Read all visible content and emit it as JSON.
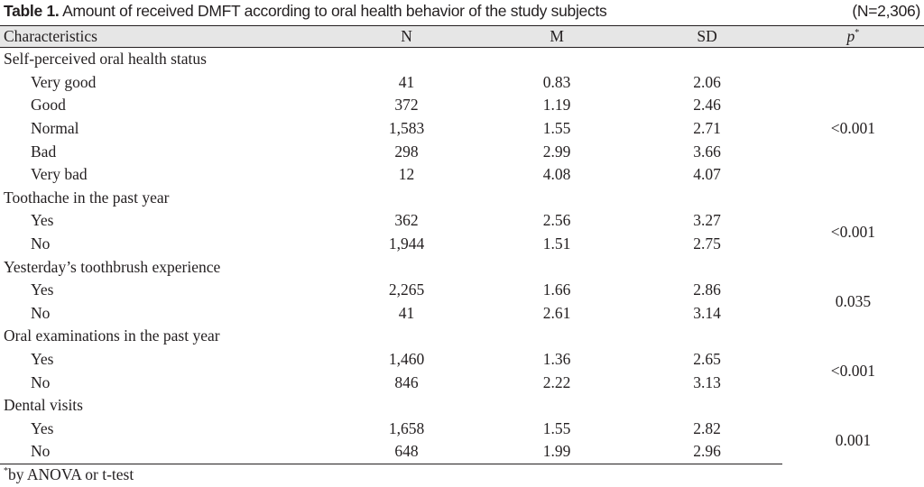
{
  "caption": {
    "label": "Table 1.",
    "text": " Amount of received DMFT according to oral health behavior of the study subjects",
    "n": "(N=2,306)"
  },
  "headers": {
    "characteristics": "Characteristics",
    "n": "N",
    "m": "M",
    "sd": "SD",
    "p": "p",
    "p_mark": "*"
  },
  "groups": [
    {
      "title": "Self-perceived oral health status",
      "p": "<0.001",
      "rows": [
        {
          "label": "Very good",
          "n": "41",
          "m": "0.83",
          "sd": "2.06"
        },
        {
          "label": "Good",
          "n": "372",
          "m": "1.19",
          "sd": "2.46"
        },
        {
          "label": "Normal",
          "n": "1,583",
          "m": "1.55",
          "sd": "2.71"
        },
        {
          "label": "Bad",
          "n": "298",
          "m": "2.99",
          "sd": "3.66"
        },
        {
          "label": "Very bad",
          "n": "12",
          "m": "4.08",
          "sd": "4.07"
        }
      ]
    },
    {
      "title": "Toothache in the past year",
      "p": "<0.001",
      "rows": [
        {
          "label": "Yes",
          "n": "362",
          "m": "2.56",
          "sd": "3.27"
        },
        {
          "label": "No",
          "n": "1,944",
          "m": "1.51",
          "sd": "2.75"
        }
      ]
    },
    {
      "title": "Yesterday’s toothbrush experience",
      "p": "0.035",
      "rows": [
        {
          "label": "Yes",
          "n": "2,265",
          "m": "1.66",
          "sd": "2.86"
        },
        {
          "label": "No",
          "n": "41",
          "m": "2.61",
          "sd": "3.14"
        }
      ]
    },
    {
      "title": "Oral examinations in the past year",
      "p": "<0.001",
      "rows": [
        {
          "label": "Yes",
          "n": "1,460",
          "m": "1.36",
          "sd": "2.65"
        },
        {
          "label": "No",
          "n": "846",
          "m": "2.22",
          "sd": "3.13"
        }
      ]
    },
    {
      "title": "Dental visits",
      "p": "0.001",
      "rows": [
        {
          "label": "Yes",
          "n": "1,658",
          "m": "1.55",
          "sd": "2.82"
        },
        {
          "label": "No",
          "n": "648",
          "m": "1.99",
          "sd": "2.96"
        }
      ]
    }
  ],
  "footnote": {
    "mark": "*",
    "text": "by ANOVA or t-test"
  }
}
